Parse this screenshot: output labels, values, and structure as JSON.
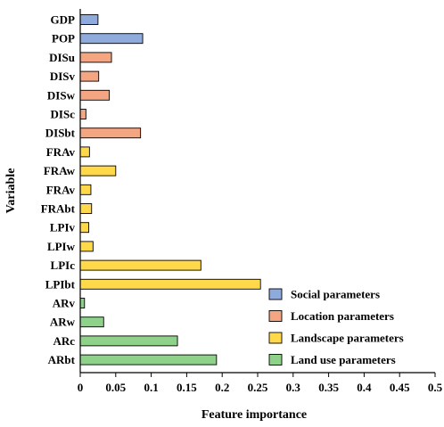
{
  "chart_data": {
    "type": "bar",
    "orientation": "horizontal",
    "xlabel": "Feature  importance",
    "ylabel": "Variable",
    "xlim": [
      0,
      0.5
    ],
    "xticks": [
      0,
      0.05,
      0.1,
      0.15,
      0.2,
      0.25,
      0.3,
      0.35,
      0.4,
      0.45,
      0.5
    ],
    "xtick_labels": [
      "0",
      "0.05",
      "0.1",
      "0.15",
      "0.2",
      "0.25",
      "0.3",
      "0.35",
      "0.4",
      "0.45",
      "0.5"
    ],
    "grid": false,
    "legend_position": "bottom-right",
    "groups": [
      {
        "name": "Social parameters",
        "color": "#8FAADC"
      },
      {
        "name": "Location parameters",
        "color": "#F4A582"
      },
      {
        "name": "Landscape parameters",
        "color": "#FFD94A"
      },
      {
        "name": "Land use parameters",
        "color": "#8ED28A"
      }
    ],
    "bars": [
      {
        "label": "GDP",
        "value": 0.025,
        "group": 0
      },
      {
        "label": "POP",
        "value": 0.088,
        "group": 0
      },
      {
        "label": "DISu",
        "value": 0.044,
        "group": 1
      },
      {
        "label": "DISv",
        "value": 0.026,
        "group": 1
      },
      {
        "label": "DISw",
        "value": 0.041,
        "group": 1
      },
      {
        "label": "DISc",
        "value": 0.008,
        "group": 1
      },
      {
        "label": "DISbt",
        "value": 0.085,
        "group": 1
      },
      {
        "label": "FRAv",
        "value": 0.013,
        "group": 2
      },
      {
        "label": "FRAw",
        "value": 0.05,
        "group": 2
      },
      {
        "label": "FRAv",
        "value": 0.015,
        "group": 2
      },
      {
        "label": "FRAbt",
        "value": 0.016,
        "group": 2
      },
      {
        "label": "LPIv",
        "value": 0.012,
        "group": 2
      },
      {
        "label": "LPIw",
        "value": 0.018,
        "group": 2
      },
      {
        "label": "LPIc",
        "value": 0.17,
        "group": 2
      },
      {
        "label": "LPIbt",
        "value": 0.254,
        "group": 2
      },
      {
        "label": "ARv",
        "value": 0.006,
        "group": 3
      },
      {
        "label": "ARw",
        "value": 0.033,
        "group": 3
      },
      {
        "label": "ARc",
        "value": 0.137,
        "group": 3
      },
      {
        "label": "ARbt",
        "value": 0.192,
        "group": 3
      }
    ]
  }
}
